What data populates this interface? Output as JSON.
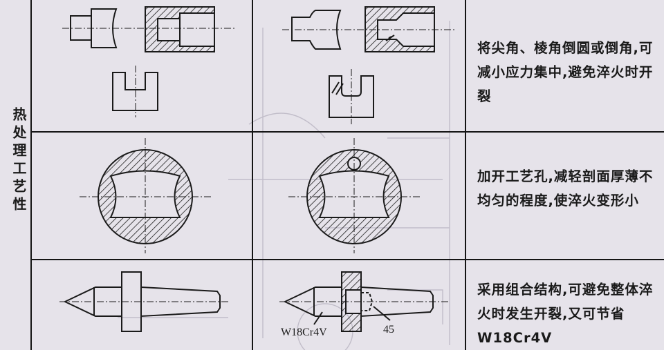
{
  "category": "热处理工艺性",
  "rows": [
    {
      "description": "将尖角、棱角倒圆或倒角,可减小应力集中,避免淬火时开裂"
    },
    {
      "description": "加开工艺孔,减轻剖面厚薄不均匀的程度,使淬火变形小"
    },
    {
      "description": "采用组合结构,可避免整体淬火时发生开裂,又可节省 W18Cr4V"
    }
  ],
  "labels": {
    "material": "W18Cr4V",
    "angle": "45"
  }
}
